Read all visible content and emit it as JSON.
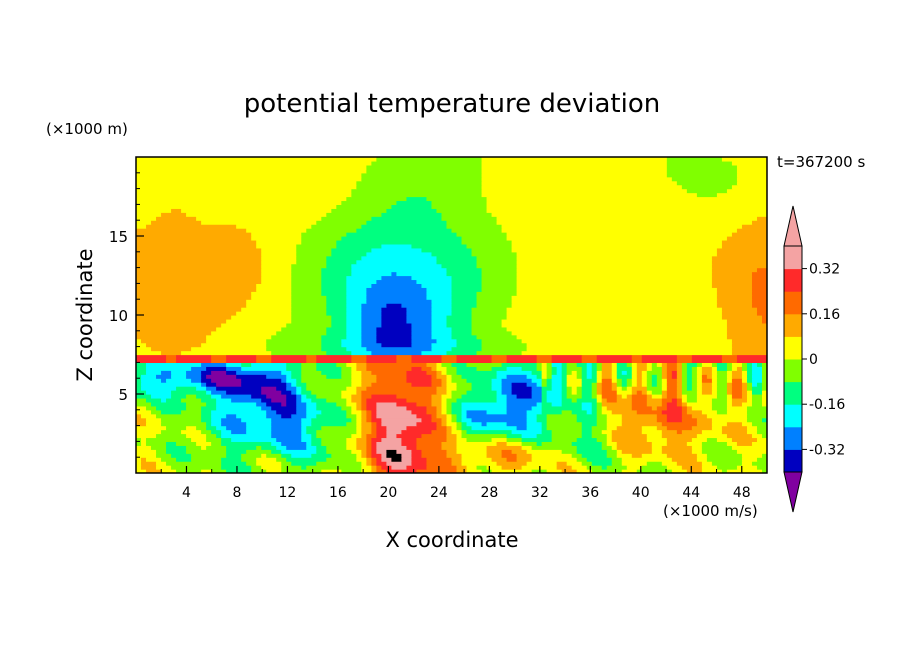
{
  "chart_data": {
    "type": "heatmap",
    "title": "potential temperature deviation",
    "xlabel": "X coordinate",
    "ylabel": "Z coordinate",
    "x_unit": "(×1000 m/s)",
    "y_unit": "(×1000 m)",
    "time_label": "t=367200 s",
    "xlim": [
      0,
      50
    ],
    "ylim": [
      0,
      20
    ],
    "x_ticks": [
      4,
      8,
      12,
      16,
      20,
      24,
      28,
      32,
      36,
      40,
      44,
      48
    ],
    "y_ticks": [
      5,
      10,
      15
    ],
    "colorbar": {
      "levels": [
        -0.4,
        -0.32,
        -0.24,
        -0.16,
        -0.08,
        0,
        0.08,
        0.16,
        0.24,
        0.32,
        0.4
      ],
      "tick_labels": [
        "0.32",
        "0.16",
        "0",
        "-0.16",
        "-0.32"
      ],
      "tick_values": [
        0.32,
        0.16,
        0,
        -0.16,
        -0.32
      ],
      "colors": [
        "#f4a3a3",
        "#ff2a2a",
        "#ff6a00",
        "#ffaa00",
        "#ffff00",
        "#80ff00",
        "#00ff80",
        "#00ffff",
        "#0080ff",
        "#0000c0",
        "#8000a0"
      ],
      "extend": "both"
    },
    "features": [
      {
        "desc": "negative anomaly dome above inversion",
        "x_center": 21,
        "z_top": 15,
        "min": -0.32
      },
      {
        "desc": "sharp inversion layer",
        "z": 7.3
      },
      {
        "desc": "positive plume below inversion",
        "x_center": 21,
        "z_range": [
          0,
          7
        ],
        "max": 0.4
      },
      {
        "desc": "turbulent mixed layer",
        "z_range": [
          0,
          7.3
        ]
      }
    ]
  }
}
